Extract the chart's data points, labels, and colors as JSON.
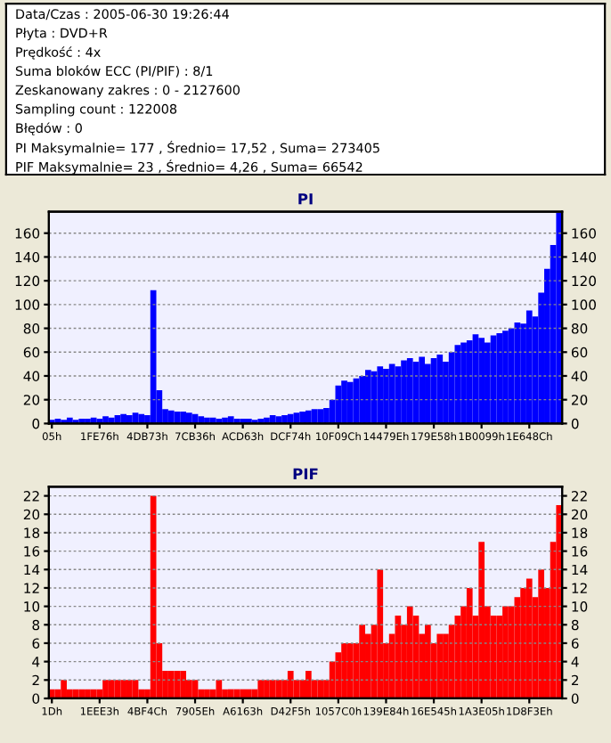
{
  "chart_data": [
    {
      "type": "other",
      "annotations": [
        "Data/Czas : 2005-06-30 19:26:44",
        "Płyta : DVD+R",
        "Prędkość : 4x",
        "Suma bloków ECC (PI/PIF) : 8/1",
        "Zeskanowany zakres : 0 - 2127600",
        "Sampling count : 122008",
        "Błędów : 0",
        "PI Maksymalnie= 177 , Średnio= 17,52 , Suma= 273405",
        "PIF Maksymalnie= 23 , Średnio= 4,26 , Suma= 66542"
      ]
    },
    {
      "type": "bar",
      "title": "PI",
      "ylim": [
        0,
        178
      ],
      "yticks": [
        0,
        20,
        40,
        60,
        80,
        100,
        120,
        140,
        160
      ],
      "y2lim": [
        0,
        178
      ],
      "y2ticks": [
        0,
        20,
        40,
        60,
        80,
        100,
        120,
        140,
        160
      ],
      "grid": "y",
      "categories": [
        "05h",
        null,
        null,
        null,
        null,
        null,
        null,
        null,
        "1FE76h",
        null,
        null,
        null,
        null,
        null,
        null,
        null,
        "4DB73h",
        null,
        null,
        null,
        null,
        null,
        null,
        null,
        "7CB36h",
        null,
        null,
        null,
        null,
        null,
        null,
        null,
        "ACD63h",
        null,
        null,
        null,
        null,
        null,
        null,
        null,
        "DCF74h",
        null,
        null,
        null,
        null,
        null,
        null,
        null,
        "10F09Ch",
        null,
        null,
        null,
        null,
        null,
        null,
        null,
        "14479Eh",
        null,
        null,
        null,
        null,
        null,
        null,
        null,
        "179E58h",
        null,
        null,
        null,
        null,
        null,
        null,
        null,
        "1B0099h",
        null,
        null,
        null,
        null,
        null,
        null,
        null,
        "1E648Ch",
        null,
        null,
        null,
        null,
        null
      ],
      "series": [
        {
          "color": "#0000ff",
          "values": [
            3,
            4,
            3,
            5,
            3,
            4,
            4,
            5,
            4,
            6,
            5,
            7,
            8,
            7,
            9,
            8,
            7,
            112,
            28,
            12,
            11,
            10,
            10,
            9,
            8,
            6,
            5,
            5,
            4,
            5,
            6,
            4,
            4,
            4,
            3,
            4,
            5,
            7,
            6,
            7,
            8,
            9,
            10,
            11,
            12,
            12,
            13,
            20,
            32,
            36,
            35,
            38,
            40,
            45,
            44,
            48,
            46,
            50,
            48,
            53,
            55,
            52,
            56,
            50,
            55,
            58,
            52,
            60,
            66,
            68,
            70,
            75,
            72,
            68,
            74,
            76,
            78,
            80,
            85,
            84,
            95,
            90,
            110,
            130,
            150,
            177
          ]
        }
      ]
    },
    {
      "type": "bar",
      "title": "PIF",
      "ylim": [
        0,
        23
      ],
      "yticks": [
        0,
        2,
        4,
        6,
        8,
        10,
        12,
        14,
        16,
        18,
        20,
        22
      ],
      "y2lim": [
        0,
        23
      ],
      "y2ticks": [
        0,
        2,
        4,
        6,
        8,
        10,
        12,
        14,
        16,
        18,
        20,
        22
      ],
      "grid": "y",
      "categories": [
        "1Dh",
        null,
        null,
        null,
        null,
        null,
        null,
        null,
        "1EEE3h",
        null,
        null,
        null,
        null,
        null,
        null,
        null,
        "4BF4Ch",
        null,
        null,
        null,
        null,
        null,
        null,
        null,
        "7905Eh",
        null,
        null,
        null,
        null,
        null,
        null,
        null,
        "A6163h",
        null,
        null,
        null,
        null,
        null,
        null,
        null,
        "D42F5h",
        null,
        null,
        null,
        null,
        null,
        null,
        null,
        "1057C0h",
        null,
        null,
        null,
        null,
        null,
        null,
        null,
        "139E84h",
        null,
        null,
        null,
        null,
        null,
        null,
        null,
        "16E545h",
        null,
        null,
        null,
        null,
        null,
        null,
        null,
        "1A3E05h",
        null,
        null,
        null,
        null,
        null,
        null,
        null,
        "1D8F3Eh",
        null,
        null,
        null,
        null,
        null
      ],
      "series": [
        {
          "color": "#ff0000",
          "values": [
            1,
            1,
            2,
            1,
            1,
            1,
            1,
            1,
            1,
            2,
            2,
            2,
            2,
            2,
            2,
            1,
            1,
            22,
            6,
            3,
            3,
            3,
            3,
            2,
            2,
            1,
            1,
            1,
            2,
            1,
            1,
            1,
            1,
            1,
            1,
            2,
            2,
            2,
            2,
            2,
            3,
            2,
            2,
            3,
            2,
            2,
            2,
            4,
            5,
            6,
            6,
            6,
            8,
            7,
            8,
            14,
            6,
            7,
            9,
            8,
            10,
            9,
            7,
            8,
            6,
            7,
            7,
            8,
            9,
            10,
            12,
            9,
            17,
            10,
            9,
            9,
            10,
            10,
            11,
            12,
            13,
            11,
            14,
            12,
            17,
            21
          ]
        }
      ]
    }
  ]
}
